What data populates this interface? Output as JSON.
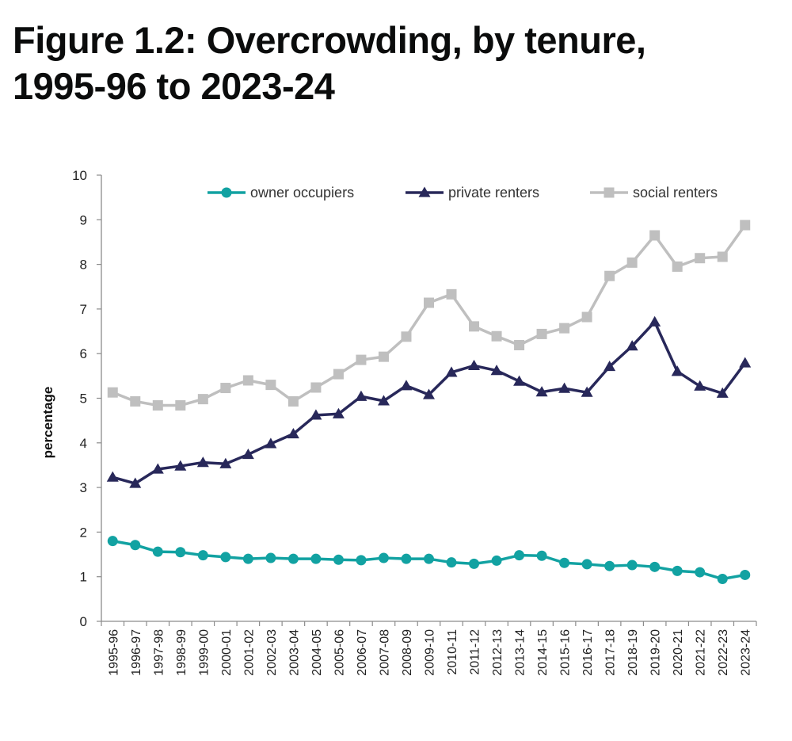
{
  "title": {
    "line1": "Figure 1.2: Overcrowding, by tenure,",
    "line2": "1995-96 to 2023-24"
  },
  "chart_data": {
    "type": "line",
    "title": "Figure 1.2: Overcrowding, by tenure, 1995-96 to 2023-24",
    "xlabel": "",
    "ylabel": "percentage",
    "ylim": [
      0,
      10
    ],
    "yticks": [
      0,
      1,
      2,
      3,
      4,
      5,
      6,
      7,
      8,
      9,
      10
    ],
    "grid": false,
    "legend_position": "top",
    "categories": [
      "1995-96",
      "1996-97",
      "1997-98",
      "1998-99",
      "1999-00",
      "2000-01",
      "2001-02",
      "2002-03",
      "2003-04",
      "2004-05",
      "2005-06",
      "2006-07",
      "2007-08",
      "2008-09",
      "2009-10",
      "2010-11",
      "2011-12",
      "2012-13",
      "2013-14",
      "2014-15",
      "2015-16",
      "2016-17",
      "2017-18",
      "2018-19",
      "2019-20",
      "2020-21",
      "2021-22",
      "2022-23",
      "2023-24"
    ],
    "series": [
      {
        "name": "owner occupiers",
        "color": "#12a2a2",
        "marker": "circle",
        "values": [
          1.8,
          1.71,
          1.56,
          1.55,
          1.48,
          1.44,
          1.4,
          1.42,
          1.4,
          1.4,
          1.38,
          1.37,
          1.42,
          1.4,
          1.4,
          1.32,
          1.29,
          1.36,
          1.48,
          1.47,
          1.31,
          1.28,
          1.24,
          1.26,
          1.22,
          1.13,
          1.1,
          0.95,
          1.04
        ]
      },
      {
        "name": "private renters",
        "color": "#28285a",
        "marker": "triangle",
        "values": [
          3.23,
          3.09,
          3.41,
          3.48,
          3.56,
          3.53,
          3.74,
          3.98,
          4.2,
          4.62,
          4.65,
          5.04,
          4.94,
          5.28,
          5.08,
          5.58,
          5.73,
          5.62,
          5.38,
          5.14,
          5.22,
          5.13,
          5.71,
          6.17,
          6.71,
          5.6,
          5.27,
          5.11,
          5.79
        ]
      },
      {
        "name": "social renters",
        "color": "#bfbfbf",
        "marker": "square",
        "values": [
          5.13,
          4.93,
          4.84,
          4.84,
          4.98,
          5.23,
          5.4,
          5.3,
          4.93,
          5.24,
          5.54,
          5.86,
          5.93,
          6.38,
          7.14,
          7.33,
          6.61,
          6.39,
          6.19,
          6.44,
          6.57,
          6.82,
          7.74,
          8.04,
          8.65,
          7.95,
          8.14,
          8.17,
          8.88
        ]
      }
    ]
  }
}
